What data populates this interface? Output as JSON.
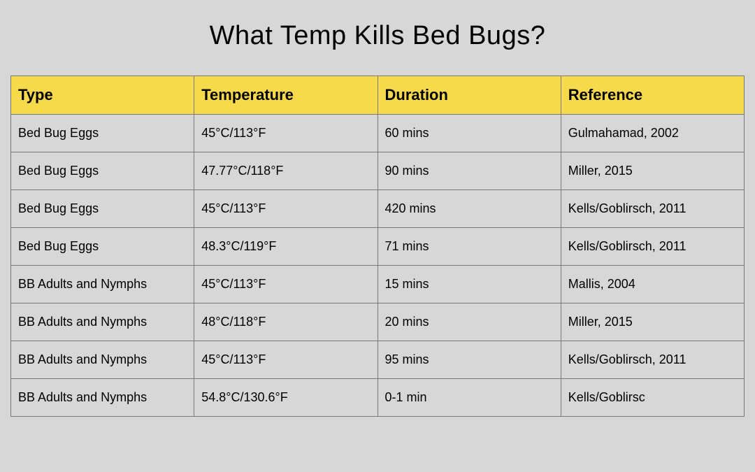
{
  "title": "What Temp Kills Bed Bugs?",
  "table": {
    "type": "table",
    "background_color": "#d7d7d7",
    "border_color": "#7a7a7a",
    "header_bg_color": "#f7d94c",
    "header_text_color": "#000000",
    "header_fontsize": 22,
    "header_fontweight": 700,
    "cell_bg_color": "#d7d7d7",
    "cell_text_color": "#000000",
    "cell_fontsize": 18,
    "cell_fontweight": 400,
    "title_fontsize": 38,
    "column_widths_pct": [
      25,
      25,
      25,
      25
    ],
    "columns": [
      "Type",
      "Temperature",
      "Duration",
      "Reference"
    ],
    "rows": [
      [
        "Bed Bug Eggs",
        "45°C/113°F",
        "60 mins",
        "Gulmahamad, 2002"
      ],
      [
        "Bed Bug Eggs",
        "47.77°C/118°F",
        "90 mins",
        "Miller, 2015"
      ],
      [
        "Bed Bug Eggs",
        "45°C/113°F",
        "420 mins",
        "Kells/Goblirsch, 2011"
      ],
      [
        "Bed Bug Eggs",
        "48.3°C/119°F",
        "71 mins",
        "Kells/Goblirsch, 2011"
      ],
      [
        "BB Adults and Nymphs",
        "45°C/113°F",
        "15 mins",
        "Mallis, 2004"
      ],
      [
        "BB Adults and Nymphs",
        "48°C/118°F",
        "20 mins",
        "Miller, 2015"
      ],
      [
        "BB Adults and Nymphs",
        "45°C/113°F",
        "95 mins",
        "Kells/Goblirsch, 2011"
      ],
      [
        "BB Adults and Nymphs",
        "54.8°C/130.6°F",
        "0-1 min",
        "Kells/Goblirsc"
      ]
    ]
  }
}
